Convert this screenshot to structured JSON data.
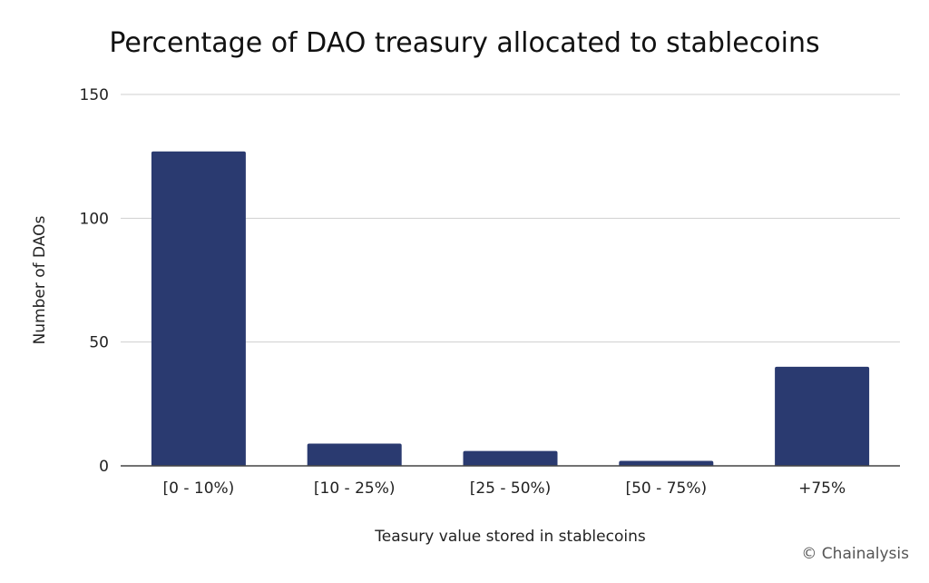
{
  "chart_data": {
    "type": "bar",
    "title": "Percentage of DAO treasury allocated to stablecoins",
    "xlabel": "Teasury value stored in stablecoins",
    "ylabel": "Number of DAOs",
    "categories": [
      "[0 - 10%)",
      "[10 - 25%)",
      "[25 - 50%)",
      "[50 - 75%)",
      "+75%"
    ],
    "values": [
      127,
      9,
      6,
      2,
      40
    ],
    "ylim": [
      0,
      150
    ],
    "yticks": [
      0,
      50,
      100,
      150
    ],
    "grid": true,
    "bar_color": "#2a3a70"
  },
  "credit": "© Chainalysis"
}
